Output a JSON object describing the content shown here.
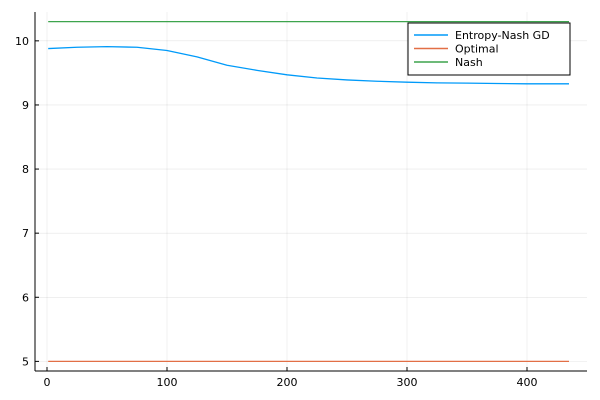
{
  "chart_data": {
    "type": "line",
    "title": "",
    "xlabel": "",
    "ylabel": "",
    "xlim": [
      -10,
      450
    ],
    "ylim": [
      4.85,
      10.45
    ],
    "xticks": [
      0,
      100,
      200,
      300,
      400
    ],
    "yticks": [
      5,
      6,
      7,
      8,
      9,
      10
    ],
    "grid": true,
    "legend": "top-right",
    "series": [
      {
        "name": "Entropy-Nash GD",
        "color": "#009af9",
        "x": [
          1,
          25,
          50,
          75,
          100,
          125,
          150,
          175,
          200,
          225,
          250,
          275,
          300,
          325,
          350,
          375,
          400,
          435
        ],
        "y": [
          9.88,
          9.9,
          9.91,
          9.9,
          9.85,
          9.75,
          9.62,
          9.54,
          9.47,
          9.42,
          9.39,
          9.37,
          9.355,
          9.345,
          9.34,
          9.335,
          9.33,
          9.33
        ]
      },
      {
        "name": "Optimal",
        "color": "#e26f46",
        "x": [
          1,
          435
        ],
        "y": [
          5.0,
          5.0
        ]
      },
      {
        "name": "Nash",
        "color": "#3da44d",
        "x": [
          1,
          435
        ],
        "y": [
          10.3,
          10.3
        ]
      }
    ]
  }
}
